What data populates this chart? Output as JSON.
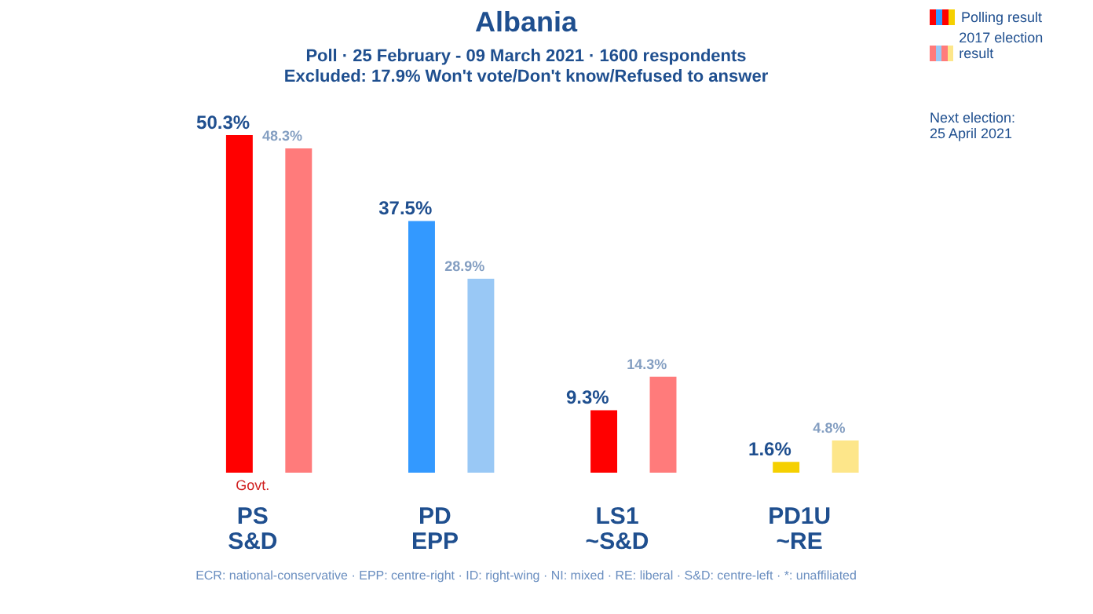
{
  "chart_data": {
    "type": "bar",
    "title": "Albania",
    "subtitle": "Poll · 25 February - 09 March 2021 · 1600 respondents\nExcluded: 17.9% Won't vote/Don't know/Refused to answer",
    "categories": [
      "PS\nS&D",
      "PD\nEPP",
      "LS1\n~S&D",
      "PD1U\n~RE"
    ],
    "series": [
      {
        "name": "Polling result",
        "colors": [
          "#ff0000",
          "#3399ff",
          "#ff0000",
          "#f5d000"
        ],
        "values": [
          50.3,
          37.5,
          9.3,
          1.6
        ],
        "value_labels": [
          "50.3%",
          "37.5%",
          "9.3%",
          "1.6%"
        ]
      },
      {
        "name": "2017 election result",
        "colors": [
          "#ff7b7b",
          "#99c8f5",
          "#ff7b7b",
          "#fde68a"
        ],
        "values": [
          48.3,
          28.9,
          14.3,
          4.8
        ],
        "value_labels": [
          "48.3%",
          "28.9%",
          "14.3%",
          "4.8%"
        ]
      }
    ],
    "legend": "top right",
    "annotations": [
      "Govt.",
      "Next election:\n25 April 2021",
      "ECR: national-conservative · EPP: centre-right · ID: right-wing · NI: mixed · RE: liberal · S&D: centre-left · *: unaffiliated"
    ]
  }
}
